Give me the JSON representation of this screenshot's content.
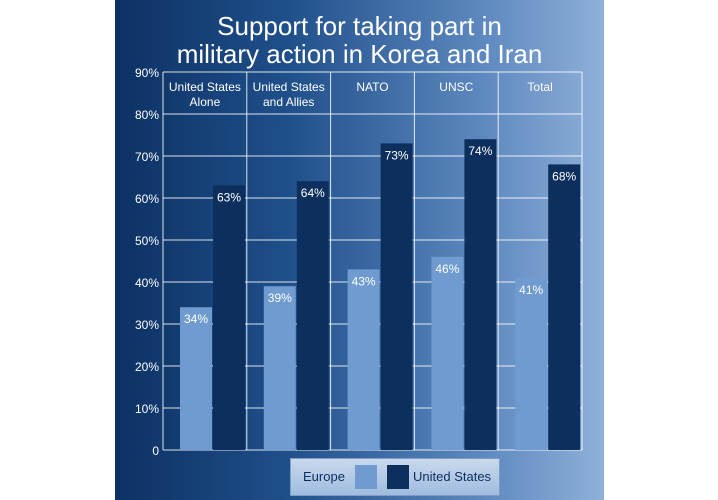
{
  "chart_data": {
    "type": "bar",
    "title_lines": [
      "Support for taking part in",
      "military action in Korea and Iran"
    ],
    "categories": [
      "United States Alone",
      "United States and Allies",
      "NATO",
      "UNSC",
      "Total"
    ],
    "category_label_lines": [
      [
        "United States",
        "Alone"
      ],
      [
        "United States",
        "and Allies"
      ],
      [
        "NATO"
      ],
      [
        "UNSC"
      ],
      [
        "Total"
      ]
    ],
    "series": [
      {
        "name": "Europe",
        "values": [
          34,
          39,
          43,
          46,
          41
        ],
        "labels": [
          "34%",
          "39%",
          "43%",
          "46%",
          "41%"
        ],
        "color": "#6f9bd0"
      },
      {
        "name": "United States",
        "values": [
          63,
          64,
          73,
          74,
          68
        ],
        "labels": [
          "63%",
          "64%",
          "73%",
          "74%",
          "68%"
        ],
        "color": "#0d2f5e"
      }
    ],
    "ylim": [
      0,
      90
    ],
    "yticks": [
      0,
      10,
      20,
      30,
      40,
      50,
      60,
      70,
      80,
      90
    ],
    "ytick_labels": [
      "0",
      "10%",
      "20%",
      "30%",
      "40%",
      "50%",
      "60%",
      "70%",
      "80%",
      "90%"
    ],
    "grid": true,
    "legend_position": "bottom"
  }
}
